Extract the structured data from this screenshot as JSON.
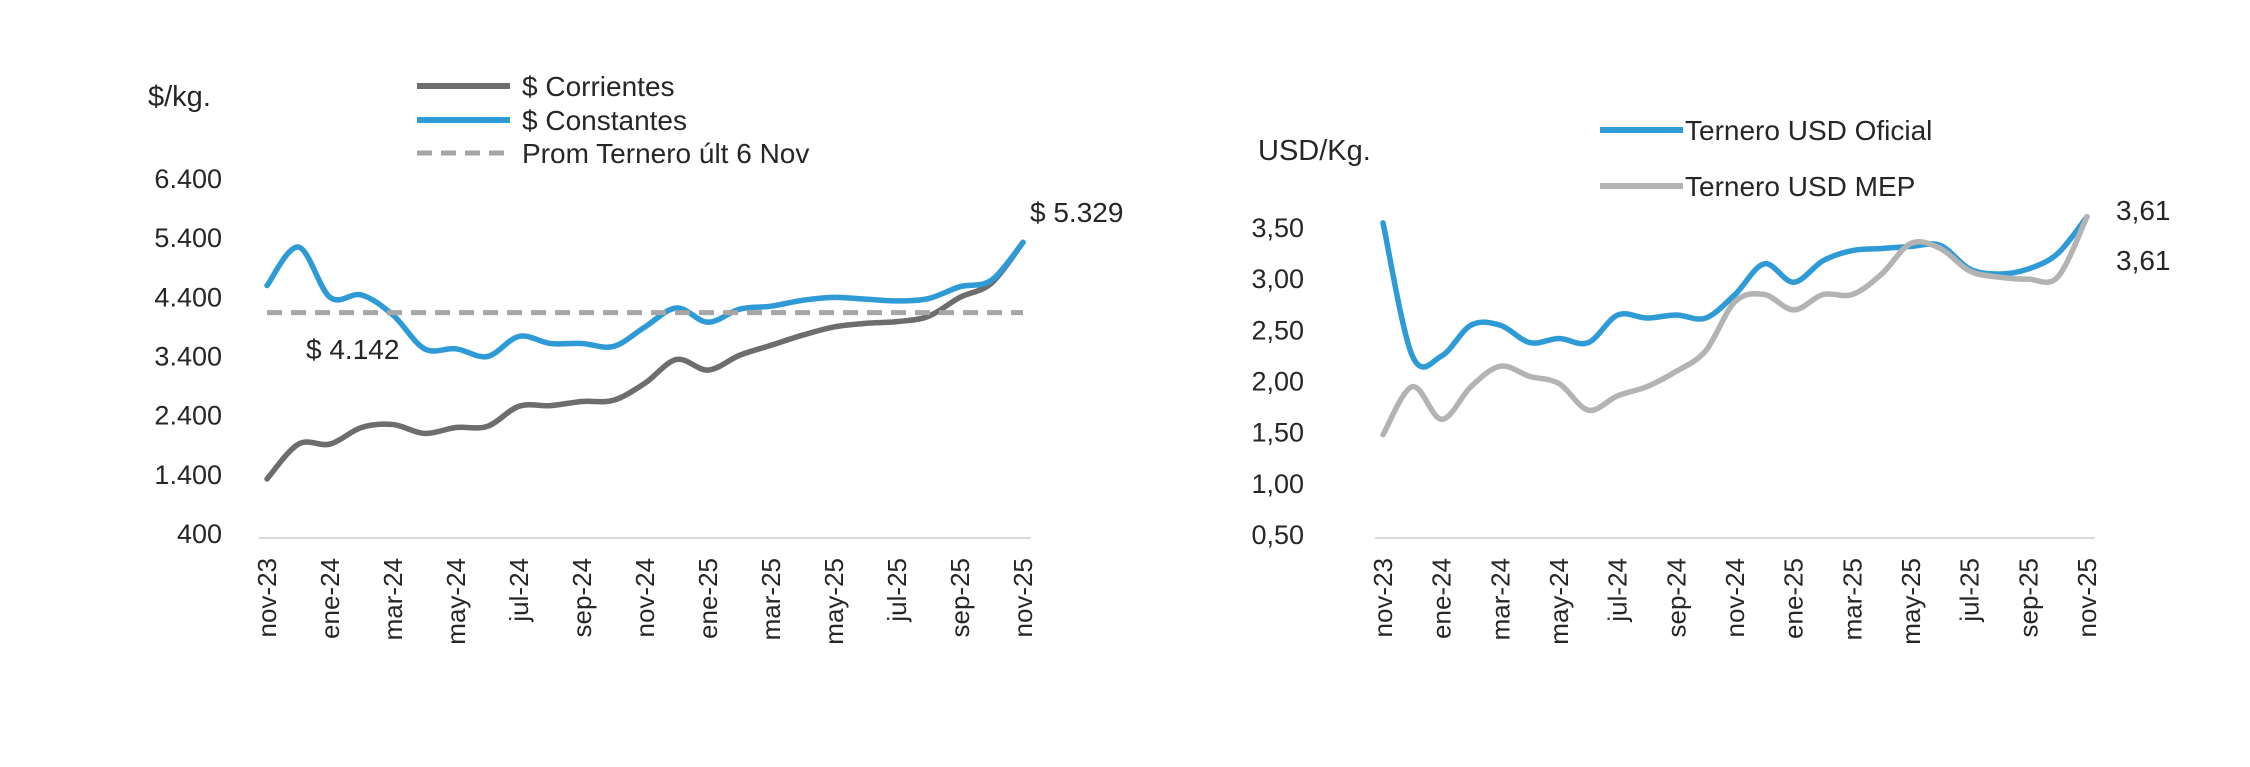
{
  "chart_data": [
    {
      "type": "line",
      "ylabel": "$/kg.",
      "ylim": [
        400,
        6400
      ],
      "yticks": [
        "6.400",
        "5.400",
        "4.400",
        "3.400",
        "2.400",
        "1.400",
        "400"
      ],
      "ytick_values": [
        6400,
        5400,
        4400,
        3400,
        2400,
        1400,
        400
      ],
      "xtick_labels": [
        "nov-23",
        "ene-24",
        "mar-24",
        "may-24",
        "jul-24",
        "sep-24",
        "nov-24",
        "ene-25",
        "mar-25",
        "may-25",
        "jul-25",
        "sep-25",
        "nov-25"
      ],
      "series": [
        {
          "name": "$ Corrientes",
          "color": "#6d6d6d",
          "values": [
            1330,
            1920,
            1920,
            2200,
            2250,
            2100,
            2200,
            2220,
            2560,
            2570,
            2640,
            2660,
            2950,
            3350,
            3170,
            3420,
            3590,
            3760,
            3900,
            3960,
            3990,
            4080,
            4400,
            4640,
            5329
          ]
        },
        {
          "name": "$ Constantes",
          "color": "#2e9bd6",
          "values": [
            4600,
            5250,
            4400,
            4440,
            4100,
            3530,
            3530,
            3400,
            3740,
            3620,
            3620,
            3570,
            3900,
            4220,
            3980,
            4200,
            4250,
            4350,
            4400,
            4370,
            4340,
            4380,
            4580,
            4690,
            5329
          ]
        },
        {
          "name": "Prom Ternero últ 6 Nov",
          "color": "#a6a6a6",
          "dashed": true,
          "values": [
            4142,
            4142
          ]
        }
      ],
      "annotations": [
        "$ 4.142",
        "$ 5.329"
      ]
    },
    {
      "type": "line",
      "ylabel": "USD/Kg.",
      "ylim": [
        0.5,
        3.5
      ],
      "yticks": [
        "3,50",
        "3,00",
        "2,50",
        "2,00",
        "1,50",
        "1,00",
        "0,50"
      ],
      "ytick_values": [
        3.5,
        3.0,
        2.5,
        2.0,
        1.5,
        1.0,
        0.5
      ],
      "xtick_labels": [
        "nov-23",
        "ene-24",
        "mar-24",
        "may-24",
        "jul-24",
        "sep-24",
        "nov-24",
        "ene-25",
        "mar-25",
        "may-25",
        "jul-25",
        "sep-25",
        "nov-25"
      ],
      "series": [
        {
          "name": "Ternero USD Oficial",
          "color": "#2e9bd6",
          "values": [
            3.55,
            2.25,
            2.25,
            2.55,
            2.55,
            2.38,
            2.42,
            2.38,
            2.65,
            2.62,
            2.65,
            2.62,
            2.85,
            3.15,
            2.97,
            3.18,
            3.28,
            3.3,
            3.32,
            3.33,
            3.1,
            3.05,
            3.1,
            3.25,
            3.61
          ]
        },
        {
          "name": "Ternero USD MEP",
          "color": "#b3b3b3",
          "values": [
            1.48,
            1.95,
            1.63,
            1.95,
            2.15,
            2.05,
            1.98,
            1.72,
            1.86,
            1.95,
            2.1,
            2.3,
            2.78,
            2.85,
            2.7,
            2.85,
            2.85,
            3.05,
            3.35,
            3.3,
            3.08,
            3.02,
            3.0,
            3.02,
            3.61
          ]
        }
      ],
      "annotations": [
        "3,61",
        "3,61"
      ]
    }
  ]
}
